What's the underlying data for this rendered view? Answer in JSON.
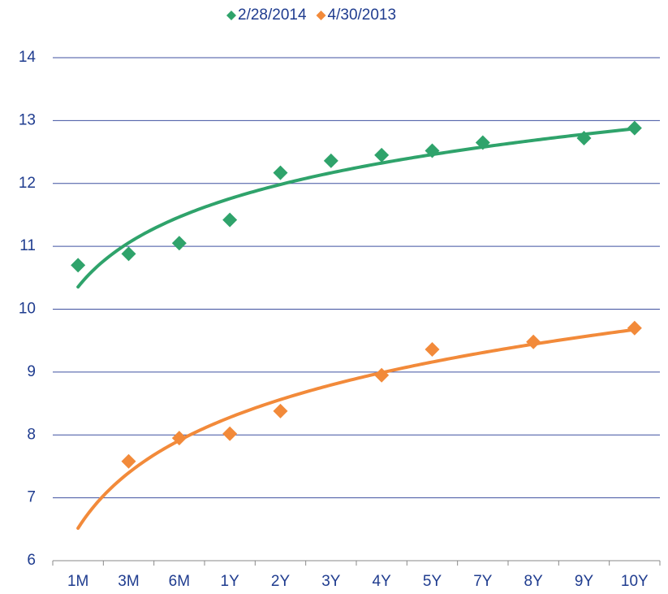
{
  "chart_data": {
    "type": "scatter",
    "categories": [
      "1M",
      "3M",
      "6M",
      "1Y",
      "2Y",
      "3Y",
      "4Y",
      "5Y",
      "7Y",
      "8Y",
      "9Y",
      "10Y"
    ],
    "series": [
      {
        "name": "2/28/2014",
        "color": "#2fa36b",
        "values": [
          10.7,
          10.88,
          11.05,
          11.42,
          12.17,
          12.36,
          12.45,
          12.52,
          12.65,
          null,
          12.72,
          12.88
        ]
      },
      {
        "name": "4/30/2013",
        "color": "#f28a3a",
        "values": [
          null,
          7.58,
          7.95,
          8.02,
          8.38,
          null,
          8.95,
          9.36,
          null,
          9.48,
          null,
          9.7
        ]
      }
    ],
    "trendline": "logarithmic",
    "ylim": [
      6,
      14
    ],
    "yticks": [
      6,
      7,
      8,
      9,
      10,
      11,
      12,
      13,
      14
    ],
    "grid": true,
    "legend": "top"
  }
}
